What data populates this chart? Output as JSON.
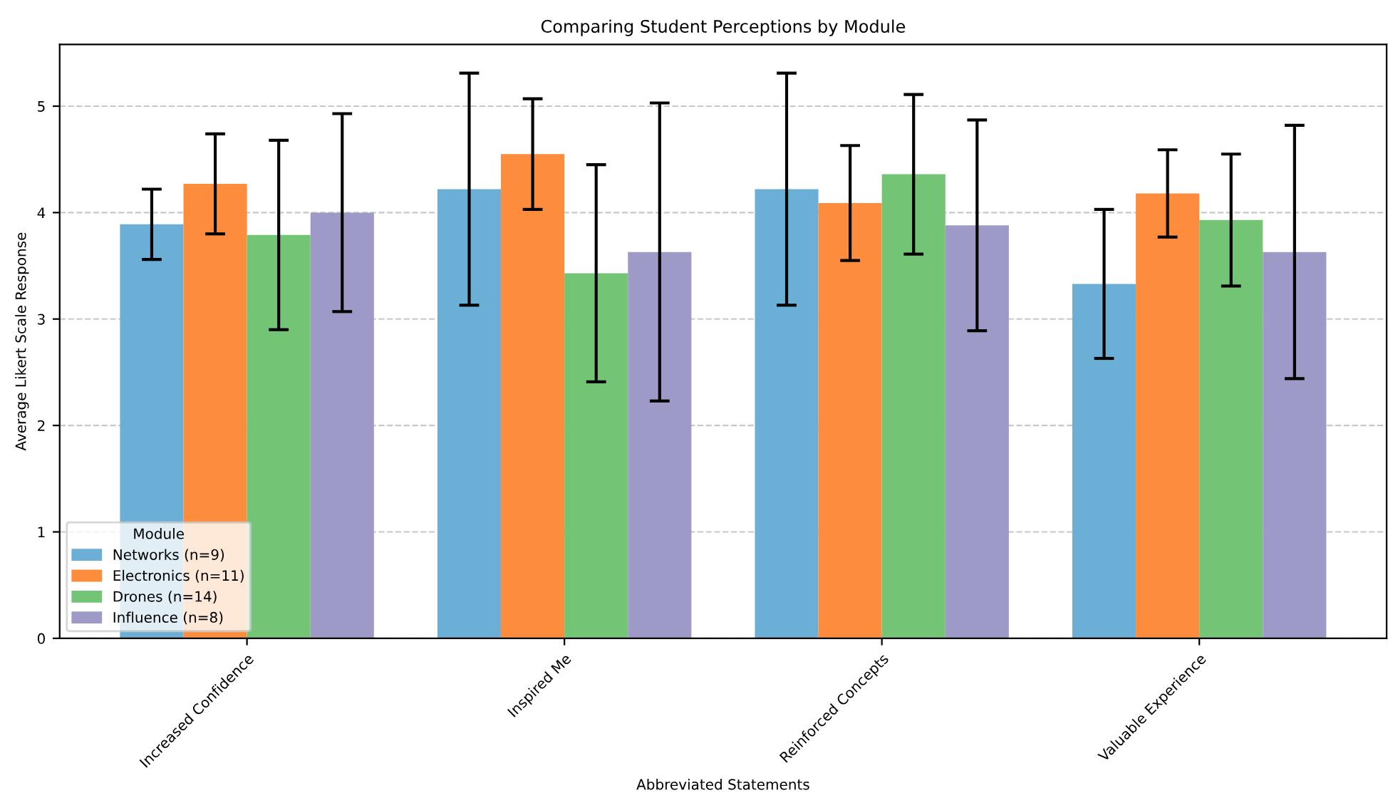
{
  "chart_data": {
    "type": "bar",
    "title": "Comparing Student Perceptions by Module",
    "xlabel": "Abbreviated Statements",
    "ylabel": "Average Likert Scale Response",
    "legend_title": "Module",
    "categories": [
      "Increased Confidence",
      "Inspired Me",
      "Reinforced Concepts",
      "Valuable Experience"
    ],
    "series": [
      {
        "name": "Networks (n=9)",
        "color": "#6baed6",
        "values": [
          3.89,
          4.22,
          4.22,
          3.33
        ],
        "errors": [
          0.33,
          1.09,
          1.09,
          0.7
        ]
      },
      {
        "name": "Electronics (n=11)",
        "color": "#fd8d3c",
        "values": [
          4.27,
          4.55,
          4.09,
          4.18
        ],
        "errors": [
          0.47,
          0.52,
          0.54,
          0.41
        ]
      },
      {
        "name": "Drones (n=14)",
        "color": "#74c476",
        "values": [
          3.79,
          3.43,
          4.36,
          3.93
        ],
        "errors": [
          0.89,
          1.02,
          0.75,
          0.62
        ]
      },
      {
        "name": "Influence (n=8)",
        "color": "#9e9ac8",
        "values": [
          4.0,
          3.63,
          3.88,
          3.63
        ],
        "errors": [
          0.93,
          1.4,
          0.99,
          1.19
        ]
      }
    ],
    "ylim": [
      0,
      5.58
    ],
    "yticks": [
      0,
      1,
      2,
      3,
      4,
      5
    ],
    "grid": "y",
    "legend": "bottom left"
  }
}
